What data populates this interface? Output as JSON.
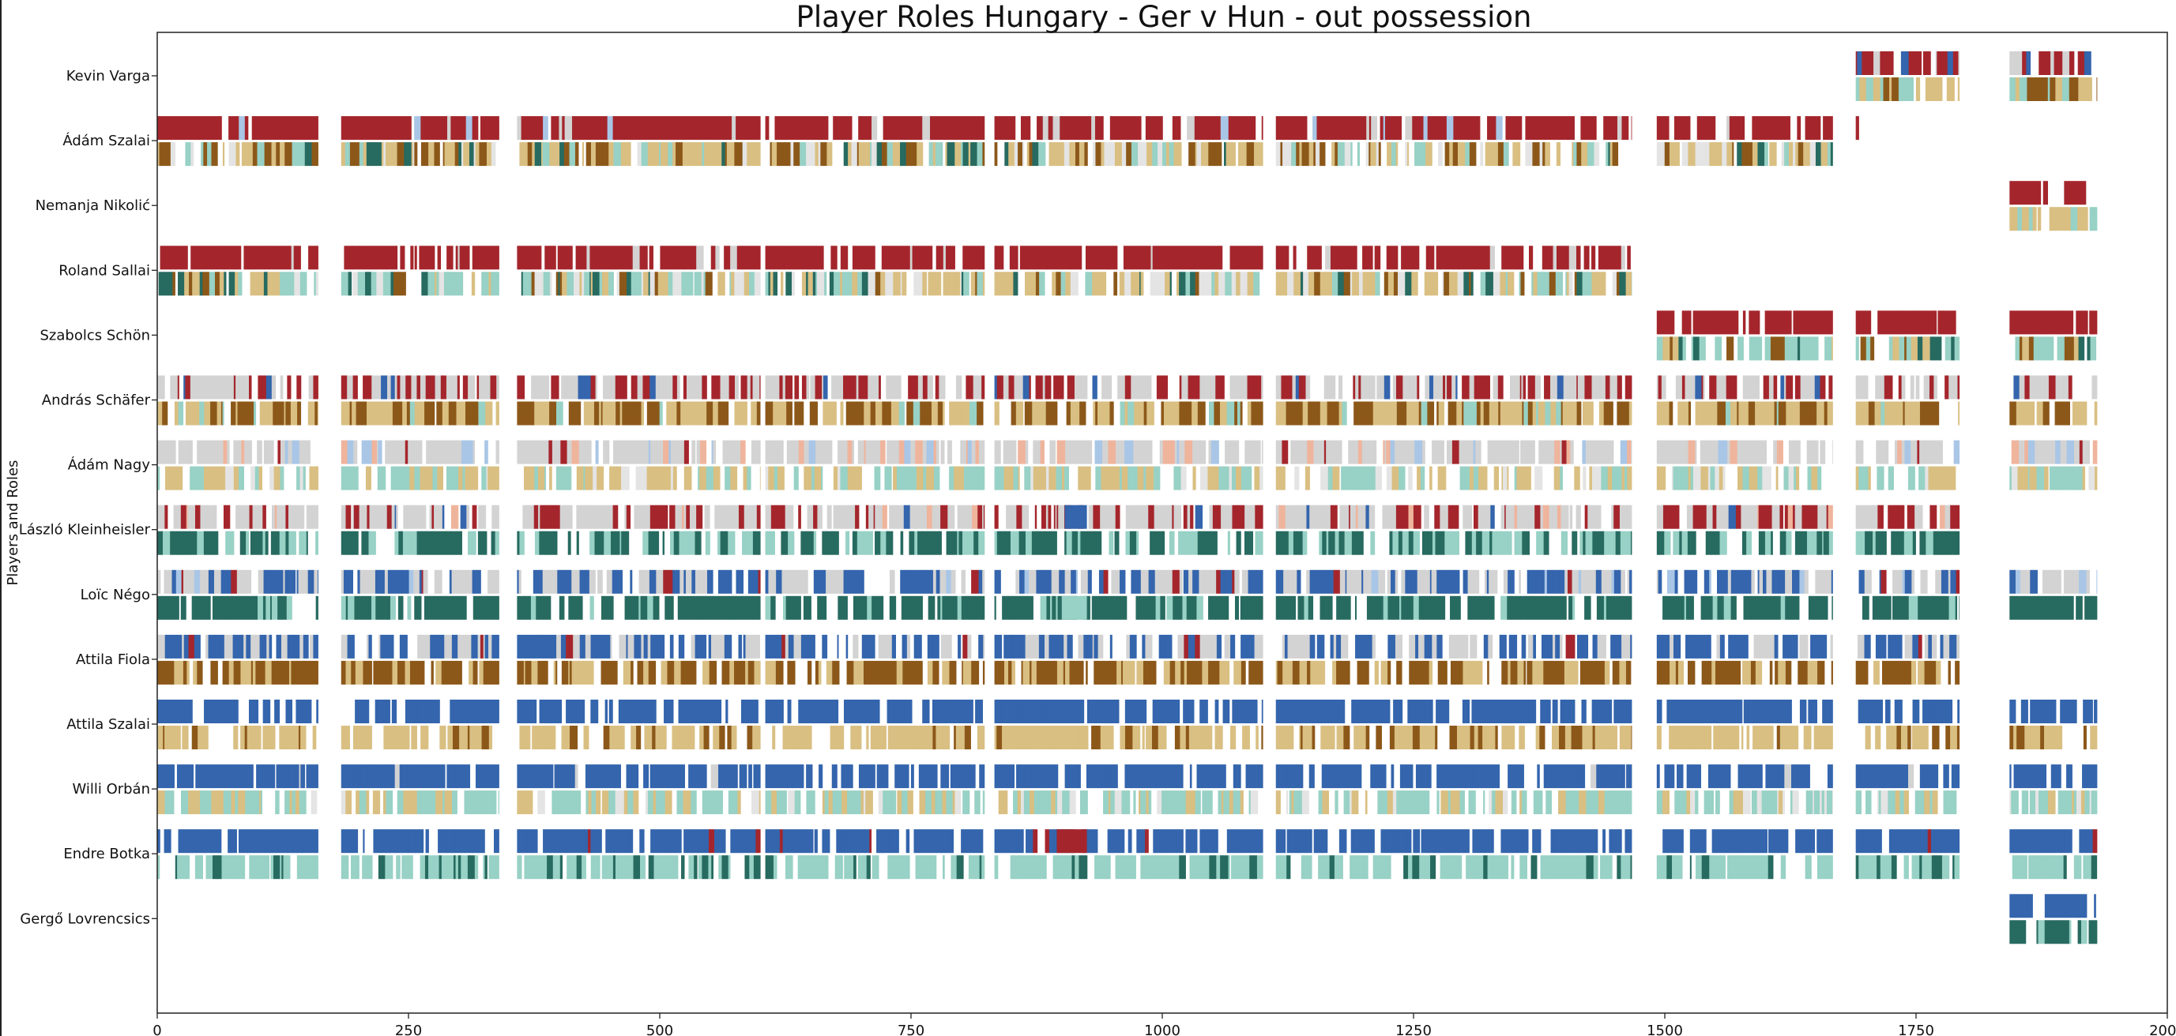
{
  "chart_data": {
    "type": "heatmap",
    "title": "Player Roles Hungary - Ger v Hun - out possession",
    "ylabel": "Players and Roles",
    "xlabel": "",
    "xlim": [
      0,
      2000
    ],
    "xticks": [
      0,
      250,
      500,
      750,
      1000,
      1250,
      1500,
      1750,
      2000
    ],
    "players": [
      "Kevin Varga",
      "Ádám Szalai",
      "Nemanja Nikolić",
      "Roland Sallai",
      "Szabolcs Schön",
      "András Schäfer",
      "Ádám Nagy",
      "László Kleinheisler",
      "Loïc Négo",
      "Attila Fiola",
      "Attila Szalai",
      "Willi Orbán",
      "Endre Botka",
      "Gergő Lovrencsics"
    ],
    "segments": [
      [
        0,
        160
      ],
      [
        183,
        340
      ],
      [
        358,
        600
      ],
      [
        605,
        823
      ],
      [
        833,
        1100
      ],
      [
        1113,
        1467
      ],
      [
        1492,
        1667
      ],
      [
        1690,
        1793
      ],
      [
        1843,
        1930
      ]
    ],
    "presence": {
      "Kevin Varga": [
        [
          1690,
          1793
        ],
        [
          1843,
          1930
        ]
      ],
      "Ádám Szalai": [
        [
          0,
          1667
        ],
        [
          1690,
          1693
        ]
      ],
      "Nemanja Nikolić": [
        [
          1843,
          1930
        ]
      ],
      "Roland Sallai": [
        [
          0,
          1467
        ]
      ],
      "Szabolcs Schön": [
        [
          1492,
          1930
        ]
      ],
      "András Schäfer": [
        [
          0,
          1930
        ]
      ],
      "Ádám Nagy": [
        [
          0,
          1930
        ]
      ],
      "László Kleinheisler": [
        [
          0,
          1793
        ]
      ],
      "Loïc Négo": [
        [
          0,
          1930
        ]
      ],
      "Attila Fiola": [
        [
          0,
          1793
        ]
      ],
      "Attila Szalai": [
        [
          0,
          1930
        ]
      ],
      "Willi Orbán": [
        [
          0,
          1930
        ]
      ],
      "Endre Botka": [
        [
          0,
          1930
        ]
      ],
      "Gergő Lovrencsics": [
        [
          1843,
          1930
        ]
      ]
    },
    "top_palette": {
      "red": "#a4262c",
      "blue": "#3465ad",
      "grey": "#d3d3d3",
      "light_blue": "#a9c6e6",
      "salmon": "#efb49c",
      "white": "#ffffff"
    },
    "bottom_palette": {
      "brown": "#8c5819",
      "tan": "#d9bf82",
      "dark_teal": "#276a60",
      "light_teal": "#98d1c5",
      "light_grey": "#e4e4e4",
      "white": "#ffffff"
    },
    "rows_style": {
      "Kevin Varga": {
        "top": {
          "red": 0.55,
          "blue": 0.15,
          "grey": 0.1,
          "white": 0.2
        },
        "bottom": {
          "tan": 0.35,
          "brown": 0.2,
          "light_teal": 0.25,
          "white": 0.2
        }
      },
      "Ádám Szalai": {
        "top": {
          "red": 0.8,
          "grey": 0.05,
          "light_blue": 0.03,
          "white": 0.12
        },
        "bottom": {
          "grey_like": 0,
          "tan": 0.3,
          "brown": 0.2,
          "light_grey": 0.15,
          "light_teal": 0.12,
          "dark_teal": 0.08,
          "white": 0.15
        }
      },
      "Nemanja Nikolić": {
        "top": {
          "red": 0.8,
          "white": 0.2
        },
        "bottom": {
          "tan": 0.55,
          "light_teal": 0.2,
          "white": 0.25
        }
      },
      "Roland Sallai": {
        "top": {
          "red": 0.8,
          "grey": 0.05,
          "white": 0.15
        },
        "bottom": {
          "tan": 0.25,
          "light_teal": 0.22,
          "dark_teal": 0.13,
          "light_grey": 0.15,
          "brown": 0.08,
          "white": 0.17
        }
      },
      "Szabolcs Schön": {
        "top": {
          "red": 0.8,
          "white": 0.2
        },
        "bottom": {
          "light_teal": 0.35,
          "dark_teal": 0.15,
          "tan": 0.15,
          "brown": 0.15,
          "white": 0.2
        }
      },
      "András Schäfer": {
        "top": {
          "grey": 0.48,
          "red": 0.3,
          "blue": 0.05,
          "white": 0.17
        },
        "bottom": {
          "tan": 0.45,
          "brown": 0.35,
          "light_teal": 0.05,
          "white": 0.15
        }
      },
      "Ádám Nagy": {
        "top": {
          "grey": 0.62,
          "light_blue": 0.1,
          "salmon": 0.06,
          "red": 0.03,
          "white": 0.19
        },
        "bottom": {
          "tan": 0.35,
          "light_teal": 0.3,
          "light_grey": 0.1,
          "white": 0.25
        }
      },
      "László Kleinheisler": {
        "top": {
          "grey": 0.5,
          "red": 0.25,
          "salmon": 0.06,
          "blue": 0.03,
          "white": 0.16
        },
        "bottom": {
          "dark_teal": 0.45,
          "light_teal": 0.35,
          "white": 0.2
        }
      },
      "Loïc Négo": {
        "top": {
          "blue": 0.4,
          "grey": 0.35,
          "light_blue": 0.05,
          "red": 0.04,
          "white": 0.16
        },
        "bottom": {
          "dark_teal": 0.75,
          "light_teal": 0.08,
          "white": 0.17
        }
      },
      "Attila Fiola": {
        "top": {
          "blue": 0.45,
          "grey": 0.32,
          "red": 0.03,
          "white": 0.2
        },
        "bottom": {
          "brown": 0.55,
          "tan": 0.25,
          "white": 0.2
        }
      },
      "Attila Szalai": {
        "top": {
          "blue": 0.8,
          "white": 0.2
        },
        "bottom": {
          "tan": 0.62,
          "brown": 0.15,
          "white": 0.23
        }
      },
      "Willi Orbán": {
        "top": {
          "blue": 0.8,
          "grey": 0.03,
          "white": 0.17
        },
        "bottom": {
          "light_teal": 0.5,
          "tan": 0.22,
          "light_grey": 0.08,
          "white": 0.2
        }
      },
      "Endre Botka": {
        "top": {
          "blue": 0.8,
          "red": 0.02,
          "white": 0.18
        },
        "bottom": {
          "light_teal": 0.6,
          "dark_teal": 0.18,
          "white": 0.22
        }
      },
      "Gergő Lovrencsics": {
        "top": {
          "blue": 0.8,
          "white": 0.2
        },
        "bottom": {
          "dark_teal": 0.6,
          "light_teal": 0.2,
          "white": 0.2
        }
      }
    },
    "special_blocks": [
      {
        "player": "Endre Botka",
        "band": "top",
        "from": 895,
        "to": 925,
        "color": "red"
      },
      {
        "player": "László Kleinheisler",
        "band": "top",
        "from": 903,
        "to": 925,
        "color": "blue"
      },
      {
        "player": "Loïc Négo",
        "band": "bottom",
        "from": 900,
        "to": 925,
        "color": "light_teal"
      }
    ]
  }
}
